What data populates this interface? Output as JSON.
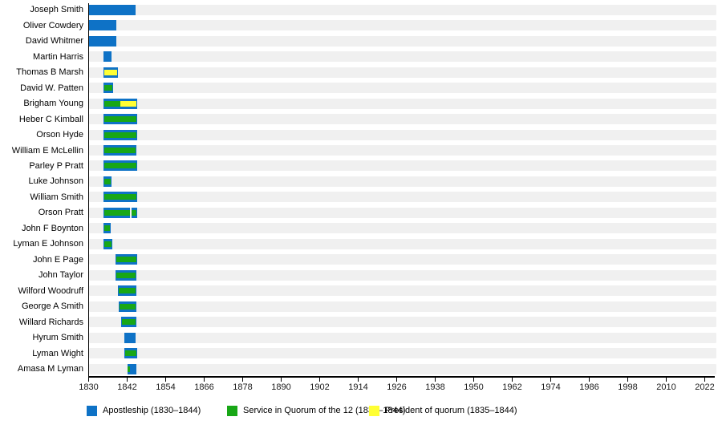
{
  "chart_data": {
    "type": "bar",
    "variant": "gantt-timeline",
    "title": "",
    "xlabel": "",
    "ylabel": "",
    "xlim": [
      1830,
      2025
    ],
    "grid": false,
    "legend_position": "bottom",
    "x_ticks": [
      1830,
      1842,
      1854,
      1866,
      1878,
      1890,
      1902,
      1914,
      1926,
      1938,
      1950,
      1962,
      1974,
      1986,
      1998,
      2010,
      2022
    ],
    "x_tick_labels": [
      "1830",
      "1842",
      "1854",
      "1866",
      "1878",
      "1890",
      "1902",
      "1914",
      "1926",
      "1938",
      "1950",
      "1962",
      "1974",
      "1986",
      "1998",
      "2010",
      "2022"
    ],
    "colors": {
      "apostle": "#0e72c6",
      "quorum": "#18a716",
      "president": "#ffff33",
      "track": "#f0f0f0",
      "axis": "#000000",
      "text": "#000000"
    },
    "legend": [
      {
        "label": "Apostleship (1830–1844)",
        "color": "#0e72c6"
      },
      {
        "label": "Service in Quorum of the 12 (1835–1844)",
        "color": "#18a716"
      },
      {
        "label": "President of quorum (1835–1844)",
        "color": "#ffff33"
      }
    ],
    "people": [
      {
        "name": "Joseph Smith",
        "bars": [
          {
            "start": 1830,
            "end": 1844.5,
            "overlays": []
          }
        ]
      },
      {
        "name": "Oliver Cowdery",
        "bars": [
          {
            "start": 1830,
            "end": 1838.5,
            "overlays": []
          }
        ]
      },
      {
        "name": "David Whitmer",
        "bars": [
          {
            "start": 1830,
            "end": 1838.5,
            "overlays": []
          }
        ]
      },
      {
        "name": "Martin Harris",
        "bars": [
          {
            "start": 1834.5,
            "end": 1837.1,
            "overlays": []
          }
        ]
      },
      {
        "name": "Thomas B Marsh",
        "bars": [
          {
            "start": 1834.5,
            "end": 1839.0,
            "overlays": [
              {
                "type": "president",
                "start": 1834.75,
                "end": 1838.75
              }
            ]
          }
        ]
      },
      {
        "name": "David W. Patten",
        "bars": [
          {
            "start": 1834.5,
            "end": 1837.5,
            "overlays": [
              {
                "type": "quorum",
                "start": 1834.75,
                "end": 1837.25
              }
            ]
          }
        ]
      },
      {
        "name": "Brigham Young",
        "bars": [
          {
            "start": 1834.5,
            "end": 1845.1,
            "overlays": [
              {
                "type": "quorum",
                "start": 1834.75,
                "end": 1839.9
              },
              {
                "type": "president",
                "start": 1839.9,
                "end": 1844.9
              }
            ]
          }
        ]
      },
      {
        "name": "Heber C Kimball",
        "bars": [
          {
            "start": 1834.5,
            "end": 1845.1,
            "overlays": [
              {
                "type": "quorum",
                "start": 1834.75,
                "end": 1844.85
              }
            ]
          }
        ]
      },
      {
        "name": "Orson Hyde",
        "bars": [
          {
            "start": 1834.5,
            "end": 1845.1,
            "overlays": [
              {
                "type": "quorum",
                "start": 1834.75,
                "end": 1844.85
              }
            ]
          }
        ]
      },
      {
        "name": "William E McLellin",
        "bars": [
          {
            "start": 1834.5,
            "end": 1844.9,
            "overlays": [
              {
                "type": "quorum",
                "start": 1834.75,
                "end": 1844.65
              }
            ]
          }
        ]
      },
      {
        "name": "Parley P Pratt",
        "bars": [
          {
            "start": 1834.5,
            "end": 1845.0,
            "overlays": [
              {
                "type": "quorum",
                "start": 1834.75,
                "end": 1844.75
              }
            ]
          }
        ]
      },
      {
        "name": "Luke Johnson",
        "bars": [
          {
            "start": 1834.5,
            "end": 1837.1,
            "overlays": [
              {
                "type": "quorum",
                "start": 1834.75,
                "end": 1836.85
              }
            ]
          }
        ]
      },
      {
        "name": "William Smith",
        "bars": [
          {
            "start": 1834.5,
            "end": 1845.0,
            "overlays": [
              {
                "type": "quorum",
                "start": 1834.75,
                "end": 1844.75
              }
            ]
          }
        ]
      },
      {
        "name": "Orson Pratt",
        "bars": [
          {
            "start": 1834.5,
            "end": 1842.9,
            "overlays": [
              {
                "type": "quorum",
                "start": 1834.75,
                "end": 1842.9
              }
            ]
          },
          {
            "start": 1843.4,
            "end": 1845.1,
            "overlays": [
              {
                "type": "quorum",
                "start": 1843.4,
                "end": 1844.85
              }
            ]
          }
        ]
      },
      {
        "name": "John F Boynton",
        "bars": [
          {
            "start": 1834.5,
            "end": 1836.75,
            "overlays": [
              {
                "type": "quorum",
                "start": 1834.75,
                "end": 1836.5
              }
            ]
          }
        ]
      },
      {
        "name": "Lyman E Johnson",
        "bars": [
          {
            "start": 1834.5,
            "end": 1837.25,
            "overlays": [
              {
                "type": "quorum",
                "start": 1834.75,
                "end": 1837.0
              }
            ]
          }
        ]
      },
      {
        "name": "John E Page",
        "bars": [
          {
            "start": 1838.25,
            "end": 1845.0,
            "overlays": [
              {
                "type": "quorum",
                "start": 1838.5,
                "end": 1844.75
              }
            ]
          }
        ]
      },
      {
        "name": "John Taylor",
        "bars": [
          {
            "start": 1838.25,
            "end": 1844.8,
            "overlays": [
              {
                "type": "quorum",
                "start": 1838.5,
                "end": 1844.55
              }
            ]
          }
        ]
      },
      {
        "name": "Wilford Woodruff",
        "bars": [
          {
            "start": 1839.1,
            "end": 1844.8,
            "overlays": [
              {
                "type": "quorum",
                "start": 1839.35,
                "end": 1844.55
              }
            ]
          }
        ]
      },
      {
        "name": "George A Smith",
        "bars": [
          {
            "start": 1839.3,
            "end": 1844.8,
            "overlays": [
              {
                "type": "quorum",
                "start": 1839.55,
                "end": 1844.55
              }
            ]
          }
        ]
      },
      {
        "name": "Willard Richards",
        "bars": [
          {
            "start": 1840.1,
            "end": 1844.8,
            "overlays": [
              {
                "type": "quorum",
                "start": 1840.35,
                "end": 1844.55
              }
            ]
          }
        ]
      },
      {
        "name": "Hyrum Smith",
        "bars": [
          {
            "start": 1841.0,
            "end": 1844.5,
            "overlays": []
          }
        ]
      },
      {
        "name": "Lyman Wight",
        "bars": [
          {
            "start": 1841.0,
            "end": 1845.0,
            "overlays": [
              {
                "type": "quorum",
                "start": 1841.25,
                "end": 1844.75
              }
            ]
          }
        ]
      },
      {
        "name": "Amasa M Lyman",
        "bars": [
          {
            "start": 1842.2,
            "end": 1844.8,
            "overlays": [
              {
                "type": "quorum",
                "start": 1842.2,
                "end": 1842.95
              }
            ]
          }
        ]
      }
    ]
  }
}
